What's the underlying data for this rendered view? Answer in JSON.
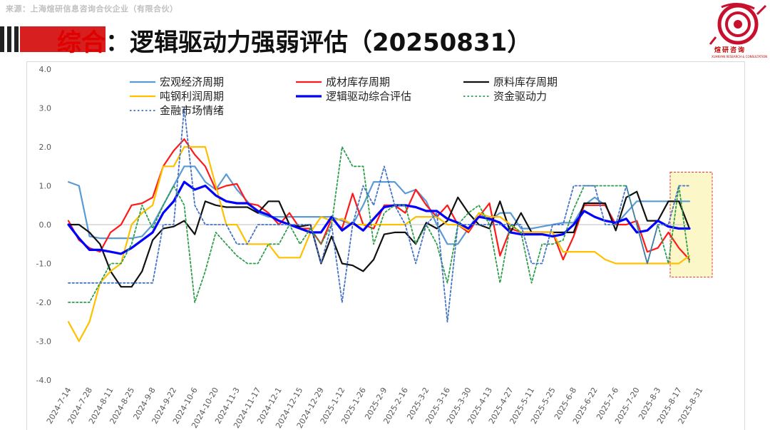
{
  "header": {
    "source": "来源：上海煊研信息咨询合伙企业（有限合伙）",
    "title_prefix": "综合",
    "title_rest": "：逻辑驱动力强弱评估（20250831）",
    "logo_text": "煊研咨询",
    "logo_sub": "XUANYAN RESEARCH & CONSULTATION"
  },
  "colors": {
    "accent_red": "#d71f1f",
    "highlight_fill": "#fbf6c0",
    "highlight_border": "#e03030"
  },
  "chart_data": {
    "type": "line",
    "ylim": [
      -4,
      4
    ],
    "yticks": [
      "4.0",
      "3.0",
      "2.0",
      "1.0",
      "0.0",
      "-1.0",
      "-2.0",
      "-3.0",
      "-4.0"
    ],
    "xtick_labels": [
      "2024-7-14",
      "2024-7-28",
      "2024-8-11",
      "2024-8-25",
      "2024-9-8",
      "2024-9-22",
      "2024-10-6",
      "2024-10-20",
      "2024-11-3",
      "2024-11-17",
      "2024-12-1",
      "2024-12-15",
      "2024-12-29",
      "2025-1-12",
      "2025-1-26",
      "2025-2-9",
      "2025-2-16",
      "2025-3-2",
      "2025-3-16",
      "2025-3-30",
      "2025-4-13",
      "2025-4-27",
      "2025-5-11",
      "2025-5-25",
      "2025-6-8",
      "2025-6-22",
      "2025-7-6",
      "2025-7-20",
      "2025-8-3",
      "2025-8-17",
      "2025-8-31"
    ],
    "n_points": 60,
    "legend_position": "top",
    "highlight": "last point (2025-8-31)",
    "series": [
      {
        "name": "宏观经济周期",
        "color": "#5b9bd5",
        "width": 2.2,
        "dash": "",
        "values": [
          1.1,
          1.0,
          -0.3,
          -0.35,
          -0.35,
          -0.35,
          -0.35,
          -0.3,
          0.0,
          0.5,
          1.0,
          1.5,
          1.5,
          1.1,
          0.9,
          1.3,
          0.9,
          0.6,
          0.3,
          0.2,
          0.2,
          0.2,
          0.2,
          0.2,
          0.2,
          0.2,
          0.1,
          0.0,
          0.5,
          1.1,
          1.1,
          1.1,
          0.8,
          0.9,
          0.6,
          0.0,
          -0.5,
          -0.5,
          -0.1,
          0.3,
          0.1,
          0.3,
          0.3,
          -0.1,
          -0.1,
          -0.05,
          0.0,
          0.05,
          0.05,
          0.5,
          0.7,
          0.5,
          0.0,
          0.3,
          0.6,
          0.6,
          0.6,
          0.6,
          0.6,
          0.6
        ]
      },
      {
        "name": "成材库存周期",
        "color": "#ff1a1a",
        "width": 2.2,
        "dash": "",
        "values": [
          0.1,
          -0.4,
          -0.6,
          -0.7,
          -0.2,
          0.0,
          0.5,
          0.55,
          0.7,
          1.5,
          1.9,
          2.2,
          1.8,
          1.5,
          0.9,
          1.0,
          1.05,
          0.55,
          0.5,
          0.3,
          0.0,
          0.3,
          -0.1,
          -0.1,
          -0.5,
          0.15,
          -0.1,
          0.8,
          0.0,
          -0.1,
          0.5,
          0.5,
          0.3,
          0.9,
          0.5,
          0.2,
          0.5,
          0.0,
          -0.2,
          0.2,
          0.55,
          -0.8,
          -0.1,
          -0.2,
          -0.2,
          -0.2,
          -0.2,
          -0.9,
          -0.3,
          0.5,
          0.5,
          0.5,
          0.0,
          0.0,
          0.1,
          -0.7,
          -0.6,
          -0.2,
          -0.6,
          -0.9
        ]
      },
      {
        "name": "原料库存周期",
        "color": "#111111",
        "width": 2.2,
        "dash": "",
        "values": [
          0.0,
          0.0,
          -0.2,
          -0.5,
          -1.2,
          -1.6,
          -1.6,
          -1.2,
          -0.4,
          -0.1,
          -0.05,
          0.1,
          -0.25,
          0.6,
          0.5,
          0.45,
          0.45,
          0.45,
          0.3,
          0.6,
          0.6,
          0.0,
          -0.05,
          0.0,
          -1.0,
          -0.3,
          -1.0,
          -1.05,
          -1.2,
          -0.9,
          -0.25,
          -0.2,
          -0.2,
          -0.5,
          0.05,
          -0.1,
          0.1,
          0.7,
          0.3,
          0.0,
          -0.1,
          0.6,
          -0.2,
          0.3,
          -0.2,
          -0.2,
          -0.2,
          -0.2,
          -0.2,
          0.55,
          0.55,
          0.55,
          -0.15,
          0.7,
          0.85,
          0.1,
          0.1,
          0.6,
          0.6,
          -0.1
        ]
      },
      {
        "name": "吨钢利润周期",
        "color": "#ffc000",
        "width": 2.2,
        "dash": "",
        "values": [
          -2.5,
          -3.0,
          -2.5,
          -1.5,
          -1.2,
          -1.0,
          0.0,
          0.3,
          0.5,
          1.5,
          1.5,
          2.0,
          2.0,
          2.0,
          1.0,
          0.0,
          0.0,
          -0.5,
          -0.5,
          -0.5,
          -0.85,
          -0.85,
          -0.85,
          -0.2,
          0.2,
          0.1,
          0.15,
          0.0,
          0.0,
          0.0,
          0.0,
          0.0,
          0.0,
          0.2,
          0.2,
          0.2,
          0.0,
          0.0,
          -0.15,
          0.3,
          0.2,
          0.2,
          0.0,
          -0.2,
          -0.2,
          -0.2,
          -0.2,
          -0.7,
          -0.7,
          -0.7,
          -0.7,
          -0.9,
          -1.0,
          -1.0,
          -1.0,
          -1.0,
          -1.0,
          -1.0,
          -1.0,
          -0.8
        ]
      },
      {
        "name": "逻辑驱动综合评估",
        "color": "#0000ff",
        "width": 3.2,
        "dash": "",
        "values": [
          0.0,
          -0.35,
          -0.65,
          -0.65,
          -0.7,
          -0.75,
          -0.6,
          -0.4,
          -0.2,
          0.3,
          0.6,
          1.1,
          0.9,
          1.0,
          0.75,
          0.6,
          0.55,
          0.55,
          0.35,
          0.25,
          0.1,
          0.0,
          -0.1,
          -0.2,
          -0.2,
          0.2,
          -0.15,
          0.05,
          -0.15,
          0.15,
          0.45,
          0.5,
          0.5,
          0.45,
          0.35,
          0.35,
          0.15,
          0.05,
          -0.1,
          0.2,
          0.15,
          0.05,
          -0.2,
          -0.25,
          -0.25,
          -0.25,
          -0.3,
          -0.25,
          0.0,
          0.35,
          0.2,
          0.1,
          0.05,
          0.15,
          -0.2,
          -0.15,
          0.1,
          -0.05,
          -0.1,
          -0.1
        ]
      },
      {
        "name": "资金驱动力",
        "color": "#2e9e4a",
        "width": 1.8,
        "dash": "2.5 3",
        "values": [
          -2.0,
          -2.0,
          -2.0,
          -1.5,
          -1.0,
          -1.0,
          -0.5,
          0.5,
          -0.1,
          0.5,
          1.0,
          0.5,
          -2.0,
          -1.2,
          -0.2,
          -0.5,
          -0.8,
          -1.0,
          -1.0,
          -0.5,
          -0.5,
          0.0,
          -0.5,
          -0.1,
          -0.5,
          0.0,
          2.0,
          1.5,
          1.5,
          -0.5,
          0.3,
          0.5,
          0.5,
          -0.5,
          0.0,
          -0.5,
          -1.5,
          0.0,
          0.3,
          0.5,
          0.0,
          -1.5,
          0.0,
          -0.2,
          -1.5,
          -0.5,
          -0.5,
          -0.4,
          0.4,
          1.0,
          1.0,
          1.0,
          1.0,
          1.0,
          0.0,
          -1.0,
          0.0,
          -1.0,
          1.0,
          -1.0
        ]
      },
      {
        "name": "金融市场情绪",
        "color": "#4472c4",
        "width": 1.8,
        "dash": "2.5 3",
        "values": [
          -1.5,
          -1.5,
          -1.5,
          -1.5,
          -1.5,
          -1.5,
          -1.5,
          -1.5,
          -1.5,
          0.0,
          0.0,
          3.0,
          0.5,
          0.0,
          0.0,
          0.0,
          -0.5,
          -0.5,
          0.0,
          0.0,
          0.0,
          0.0,
          0.0,
          0.0,
          -1.0,
          0.0,
          -2.0,
          0.0,
          1.0,
          0.5,
          1.5,
          0.5,
          0.0,
          -1.0,
          0.0,
          0.3,
          -2.5,
          0.0,
          0.0,
          0.0,
          0.0,
          0.0,
          0.0,
          0.0,
          -1.0,
          -1.0,
          0.0,
          0.0,
          1.0,
          1.0,
          1.0,
          0.0,
          0.0,
          1.0,
          0.0,
          -1.0,
          0.0,
          0.0,
          1.0,
          1.0
        ]
      }
    ]
  }
}
